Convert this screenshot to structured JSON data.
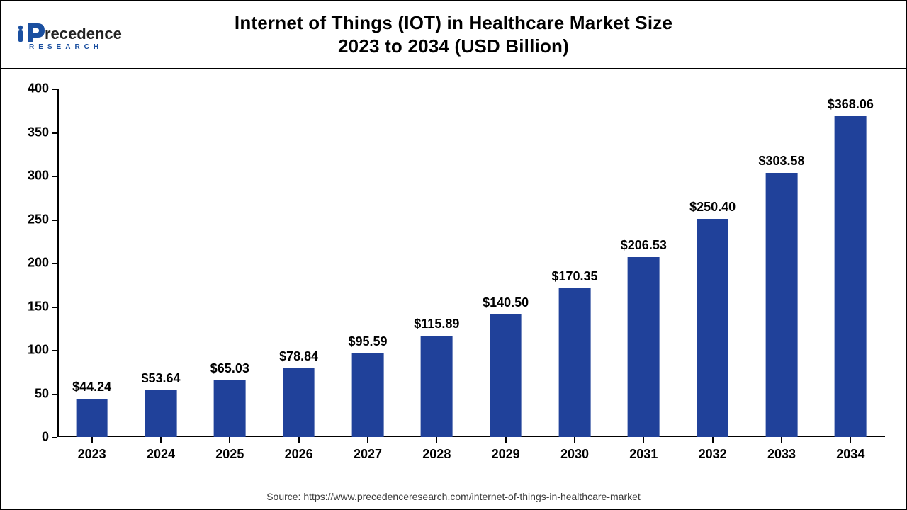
{
  "logo": {
    "text_main": "recedence",
    "text_sub": "RESEARCH",
    "accent_color": "#1a4fa0",
    "text_color": "#222222"
  },
  "title": {
    "line1": "Internet of Things (IOT) in Healthcare Market Size",
    "line2": "2023 to 2034 (USD Billion)",
    "fontsize": 26,
    "color": "#000000"
  },
  "chart": {
    "type": "bar",
    "categories": [
      "2023",
      "2024",
      "2025",
      "2026",
      "2027",
      "2028",
      "2029",
      "2030",
      "2031",
      "2032",
      "2033",
      "2034"
    ],
    "values": [
      44.24,
      53.64,
      65.03,
      78.84,
      95.59,
      115.89,
      140.5,
      170.35,
      206.53,
      250.4,
      303.58,
      368.06
    ],
    "value_labels": [
      "$44.24",
      "$53.64",
      "$65.03",
      "$78.84",
      "$95.59",
      "$115.89",
      "$140.50",
      "$170.35",
      "$206.53",
      "$250.40",
      "$303.58",
      "$368.06"
    ],
    "bar_color": "#20419a",
    "ylim": [
      0,
      400
    ],
    "ytick_step": 50,
    "yticks": [
      "0",
      "50",
      "100",
      "150",
      "200",
      "250",
      "300",
      "350",
      "400"
    ],
    "axis_color": "#000000",
    "label_fontsize": 18,
    "xlabel_fontsize": 18,
    "bar_width_ratio": 0.46,
    "background_color": "#ffffff",
    "tick_font_weight": "700"
  },
  "source": {
    "prefix": "Source: ",
    "text": "https://www.precedenceresearch.com/internet-of-things-in-healthcare-market",
    "color": "#3a3a3a",
    "fontsize": 14
  }
}
